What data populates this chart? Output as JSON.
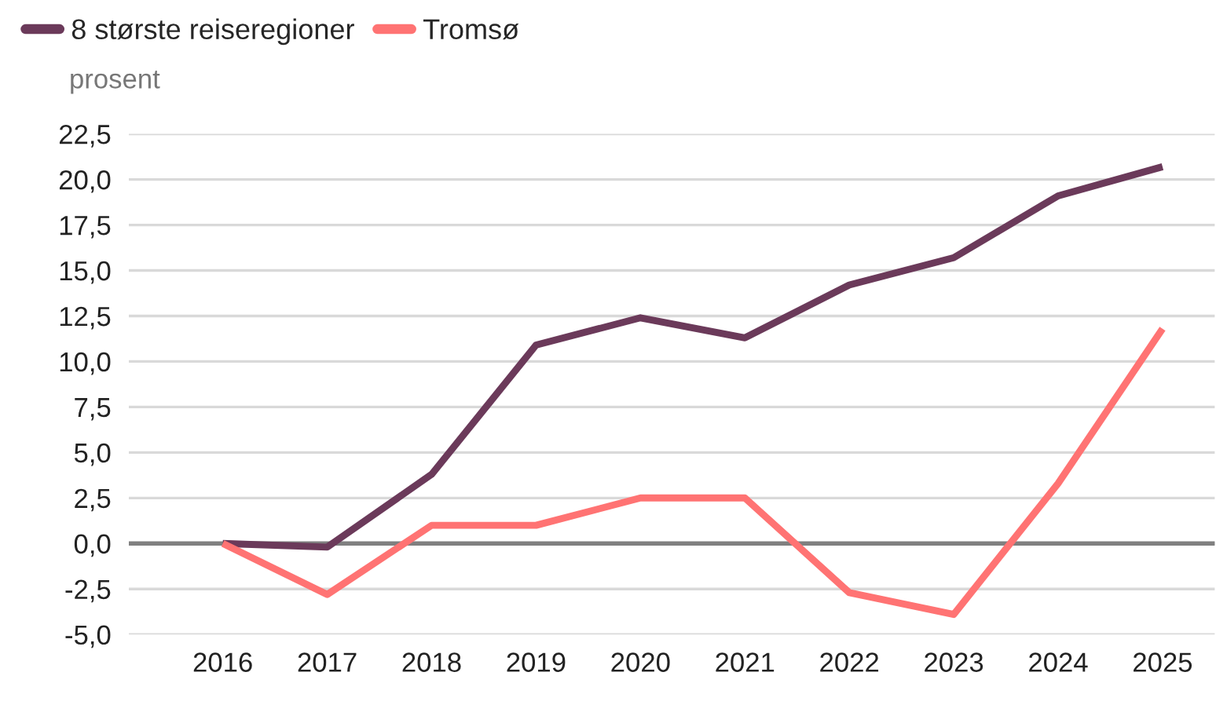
{
  "chart_data": {
    "type": "line",
    "ylabel": "prosent",
    "categories": [
      "2016",
      "2017",
      "2018",
      "2019",
      "2020",
      "2021",
      "2022",
      "2023",
      "2024",
      "2025"
    ],
    "series": [
      {
        "name": "8 største reiseregioner",
        "color": "#6b3a5a",
        "values": [
          0,
          -0.2,
          3.8,
          10.9,
          12.4,
          11.3,
          14.2,
          15.7,
          19.1,
          20.7
        ]
      },
      {
        "name": "Tromsø",
        "color": "#ff7373",
        "values": [
          0,
          -2.8,
          1.0,
          1.0,
          2.5,
          2.5,
          -2.7,
          -3.9,
          3.3,
          11.8
        ]
      }
    ],
    "ylim": [
      -5,
      22.5
    ],
    "yticks": [
      {
        "value": -5,
        "label": "-5,0"
      },
      {
        "value": -2.5,
        "label": "-2,5"
      },
      {
        "value": 0,
        "label": "0,0"
      },
      {
        "value": 2.5,
        "label": "2,5"
      },
      {
        "value": 5,
        "label": "5,0"
      },
      {
        "value": 7.5,
        "label": "7,5"
      },
      {
        "value": 10,
        "label": "10,0"
      },
      {
        "value": 12.5,
        "label": "12,5"
      },
      {
        "value": 15,
        "label": "15,0"
      },
      {
        "value": 17.5,
        "label": "17,5"
      },
      {
        "value": 20,
        "label": "20,0"
      },
      {
        "value": 22.5,
        "label": "22,5"
      }
    ],
    "ref_lines": [
      {
        "axis": "y",
        "value": 0,
        "color": "#808080"
      }
    ],
    "grid": "y",
    "legend": "top left",
    "marker": "none",
    "line_style": "solid"
  }
}
